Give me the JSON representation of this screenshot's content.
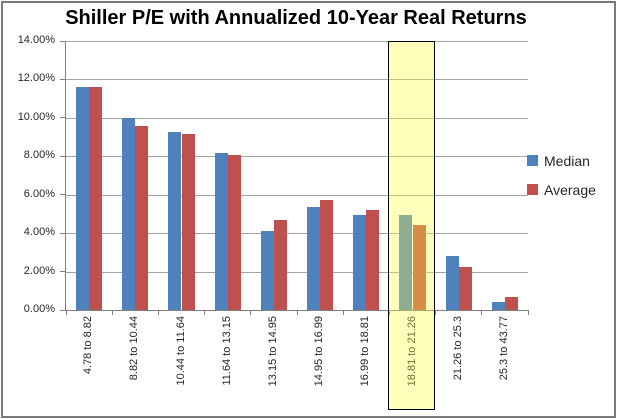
{
  "chart_data": {
    "type": "bar",
    "title": "Shiller P/E with Annualized 10-Year Real Returns",
    "categories": [
      "4.78 to 8.82",
      "8.82 to 10.44",
      "10.44 to 11.64",
      "11.64 to 13.15",
      "13.15 to 14.95",
      "14.95 to 16.99",
      "16.99 to 18.81",
      "18.81 to 21.26",
      "21.26 to 25.3",
      "25.3 to 43.77"
    ],
    "series": [
      {
        "name": "Median",
        "color": "#4F81BD",
        "values": [
          11.6,
          10.0,
          9.25,
          8.15,
          4.1,
          5.35,
          4.95,
          4.95,
          2.8,
          0.4
        ]
      },
      {
        "name": "Average",
        "color": "#C0504D",
        "values": [
          11.6,
          9.6,
          9.15,
          8.05,
          4.7,
          5.7,
          5.2,
          4.45,
          2.25,
          0.7
        ]
      }
    ],
    "xlabel": "",
    "ylabel": "",
    "ylim": [
      0,
      14
    ],
    "ytick_step": 2,
    "ytick_labels": [
      "0.00%",
      "2.00%",
      "4.00%",
      "6.00%",
      "8.00%",
      "10.00%",
      "12.00%",
      "14.00%"
    ],
    "grid": "horizontal",
    "legend_position": "right",
    "highlight": {
      "category": "18.81 to 21.26",
      "category_index": 7,
      "overlay_color": "rgba(255,255,64,0.35)",
      "border_color": "#000000",
      "effective_fill": "#FFFFC2",
      "median_bar_tint": "#8CA878",
      "average_bar_tint": "#D08830"
    },
    "colors": {
      "gridline": "#A3A3A3",
      "axis": "#7F7F7F",
      "text": "#262626",
      "title_text": "#000000",
      "chart_border": "#7A7A7A"
    }
  }
}
